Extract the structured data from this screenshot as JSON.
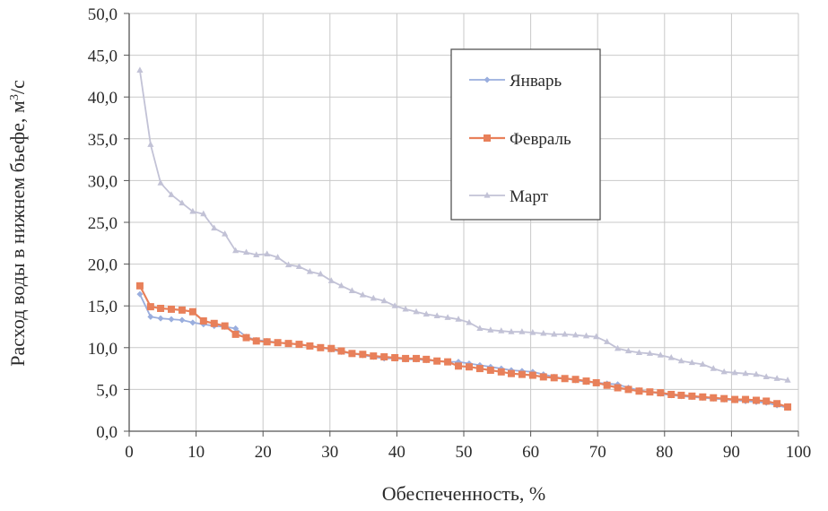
{
  "chart_data": {
    "type": "line",
    "xlabel": "Обеспеченность, %",
    "ylabel": "Расход воды в нижнем бьефе, м",
    "ylabel_sup": "3",
    "ylabel_suffix": "/с",
    "xlim": [
      0,
      100
    ],
    "ylim": [
      0,
      50
    ],
    "x_ticks": [
      0,
      10,
      20,
      30,
      40,
      50,
      60,
      70,
      80,
      90,
      100
    ],
    "x_tick_labels": [
      "0",
      "10",
      "20",
      "30",
      "40",
      "50",
      "60",
      "70",
      "80",
      "90",
      "100"
    ],
    "y_ticks": [
      0,
      5,
      10,
      15,
      20,
      25,
      30,
      35,
      40,
      45,
      50
    ],
    "y_tick_labels": [
      "0,0",
      "5,0",
      "10,0",
      "15,0",
      "20,0",
      "25,0",
      "30,0",
      "35,0",
      "40,0",
      "45,0",
      "50,0"
    ],
    "grid": true,
    "legend_position": "top-right-inside",
    "series": [
      {
        "name": "Январь",
        "color": "#9aaede",
        "marker": "diamond",
        "points": [
          [
            1.6,
            16.4
          ],
          [
            3.2,
            13.7
          ],
          [
            4.7,
            13.5
          ],
          [
            6.3,
            13.4
          ],
          [
            7.9,
            13.3
          ],
          [
            9.5,
            13.0
          ],
          [
            11.1,
            12.8
          ],
          [
            12.7,
            12.6
          ],
          [
            14.3,
            12.5
          ],
          [
            15.9,
            12.3
          ],
          [
            17.5,
            11.3
          ],
          [
            19.0,
            10.9
          ],
          [
            20.6,
            10.8
          ],
          [
            22.2,
            10.6
          ],
          [
            23.8,
            10.5
          ],
          [
            25.4,
            10.4
          ],
          [
            27.0,
            10.2
          ],
          [
            28.6,
            10.0
          ],
          [
            30.2,
            9.8
          ],
          [
            31.7,
            9.5
          ],
          [
            33.3,
            9.3
          ],
          [
            34.9,
            9.1
          ],
          [
            36.5,
            8.9
          ],
          [
            38.1,
            8.7
          ],
          [
            39.7,
            8.7
          ],
          [
            41.3,
            8.6
          ],
          [
            42.9,
            8.6
          ],
          [
            44.4,
            8.5
          ],
          [
            46.0,
            8.4
          ],
          [
            47.6,
            8.3
          ],
          [
            49.2,
            8.3
          ],
          [
            50.8,
            8.1
          ],
          [
            52.4,
            7.9
          ],
          [
            54.0,
            7.7
          ],
          [
            55.6,
            7.5
          ],
          [
            57.1,
            7.3
          ],
          [
            58.7,
            7.2
          ],
          [
            60.3,
            7.1
          ],
          [
            61.9,
            6.8
          ],
          [
            63.5,
            6.5
          ],
          [
            65.1,
            6.3
          ],
          [
            66.7,
            6.1
          ],
          [
            68.3,
            5.9
          ],
          [
            69.8,
            5.8
          ],
          [
            71.4,
            5.7
          ],
          [
            73.0,
            5.6
          ],
          [
            74.6,
            5.2
          ],
          [
            76.2,
            4.9
          ],
          [
            77.8,
            4.7
          ],
          [
            79.4,
            4.5
          ],
          [
            81.0,
            4.3
          ],
          [
            82.5,
            4.2
          ],
          [
            84.1,
            4.1
          ],
          [
            85.7,
            4.0
          ],
          [
            87.3,
            3.9
          ],
          [
            88.9,
            3.8
          ],
          [
            90.5,
            3.7
          ],
          [
            92.1,
            3.6
          ],
          [
            93.7,
            3.5
          ],
          [
            95.2,
            3.4
          ],
          [
            96.8,
            3.1
          ],
          [
            98.4,
            2.8
          ]
        ]
      },
      {
        "name": "Февраль",
        "color": "#e8805a",
        "marker": "square",
        "points": [
          [
            1.6,
            17.4
          ],
          [
            3.2,
            14.9
          ],
          [
            4.7,
            14.7
          ],
          [
            6.3,
            14.6
          ],
          [
            7.9,
            14.5
          ],
          [
            9.5,
            14.3
          ],
          [
            11.1,
            13.2
          ],
          [
            12.7,
            12.9
          ],
          [
            14.3,
            12.6
          ],
          [
            15.9,
            11.6
          ],
          [
            17.5,
            11.2
          ],
          [
            19.0,
            10.8
          ],
          [
            20.6,
            10.7
          ],
          [
            22.2,
            10.6
          ],
          [
            23.8,
            10.5
          ],
          [
            25.4,
            10.4
          ],
          [
            27.0,
            10.2
          ],
          [
            28.6,
            10.0
          ],
          [
            30.2,
            9.9
          ],
          [
            31.7,
            9.6
          ],
          [
            33.3,
            9.3
          ],
          [
            34.9,
            9.2
          ],
          [
            36.5,
            9.0
          ],
          [
            38.1,
            8.9
          ],
          [
            39.7,
            8.8
          ],
          [
            41.3,
            8.7
          ],
          [
            42.9,
            8.7
          ],
          [
            44.4,
            8.6
          ],
          [
            46.0,
            8.4
          ],
          [
            47.6,
            8.3
          ],
          [
            49.2,
            7.8
          ],
          [
            50.8,
            7.7
          ],
          [
            52.4,
            7.5
          ],
          [
            54.0,
            7.3
          ],
          [
            55.6,
            7.1
          ],
          [
            57.1,
            6.9
          ],
          [
            58.7,
            6.8
          ],
          [
            60.3,
            6.7
          ],
          [
            61.9,
            6.5
          ],
          [
            63.5,
            6.4
          ],
          [
            65.1,
            6.3
          ],
          [
            66.7,
            6.2
          ],
          [
            68.3,
            6.0
          ],
          [
            69.8,
            5.8
          ],
          [
            71.4,
            5.5
          ],
          [
            73.0,
            5.2
          ],
          [
            74.6,
            5.0
          ],
          [
            76.2,
            4.8
          ],
          [
            77.8,
            4.7
          ],
          [
            79.4,
            4.6
          ],
          [
            81.0,
            4.4
          ],
          [
            82.5,
            4.3
          ],
          [
            84.1,
            4.2
          ],
          [
            85.7,
            4.1
          ],
          [
            87.3,
            4.0
          ],
          [
            88.9,
            3.9
          ],
          [
            90.5,
            3.8
          ],
          [
            92.1,
            3.8
          ],
          [
            93.7,
            3.7
          ],
          [
            95.2,
            3.6
          ],
          [
            96.8,
            3.3
          ],
          [
            98.4,
            2.9
          ]
        ]
      },
      {
        "name": "Март",
        "color": "#c2c2d6",
        "marker": "triangle",
        "points": [
          [
            1.6,
            43.2
          ],
          [
            3.2,
            34.3
          ],
          [
            4.7,
            29.7
          ],
          [
            6.3,
            28.3
          ],
          [
            7.9,
            27.3
          ],
          [
            9.5,
            26.3
          ],
          [
            11.1,
            26.0
          ],
          [
            12.7,
            24.3
          ],
          [
            14.3,
            23.6
          ],
          [
            15.9,
            21.6
          ],
          [
            17.5,
            21.4
          ],
          [
            19.0,
            21.1
          ],
          [
            20.6,
            21.2
          ],
          [
            22.2,
            20.8
          ],
          [
            23.8,
            19.9
          ],
          [
            25.4,
            19.7
          ],
          [
            27.0,
            19.1
          ],
          [
            28.6,
            18.8
          ],
          [
            30.2,
            18.0
          ],
          [
            31.7,
            17.4
          ],
          [
            33.3,
            16.8
          ],
          [
            34.9,
            16.3
          ],
          [
            36.5,
            15.9
          ],
          [
            38.1,
            15.6
          ],
          [
            39.7,
            15.0
          ],
          [
            41.3,
            14.6
          ],
          [
            42.9,
            14.3
          ],
          [
            44.4,
            14.0
          ],
          [
            46.0,
            13.8
          ],
          [
            47.6,
            13.6
          ],
          [
            49.2,
            13.4
          ],
          [
            50.8,
            13.0
          ],
          [
            52.4,
            12.3
          ],
          [
            54.0,
            12.1
          ],
          [
            55.6,
            12.0
          ],
          [
            57.1,
            11.9
          ],
          [
            58.7,
            11.9
          ],
          [
            60.3,
            11.8
          ],
          [
            61.9,
            11.7
          ],
          [
            63.5,
            11.6
          ],
          [
            65.1,
            11.6
          ],
          [
            66.7,
            11.5
          ],
          [
            68.3,
            11.4
          ],
          [
            69.8,
            11.3
          ],
          [
            71.4,
            10.7
          ],
          [
            73.0,
            9.9
          ],
          [
            74.6,
            9.6
          ],
          [
            76.2,
            9.4
          ],
          [
            77.8,
            9.3
          ],
          [
            79.4,
            9.1
          ],
          [
            81.0,
            8.8
          ],
          [
            82.5,
            8.4
          ],
          [
            84.1,
            8.2
          ],
          [
            85.7,
            8.0
          ],
          [
            87.3,
            7.5
          ],
          [
            88.9,
            7.1
          ],
          [
            90.5,
            7.0
          ],
          [
            92.1,
            6.9
          ],
          [
            93.7,
            6.8
          ],
          [
            95.2,
            6.5
          ],
          [
            96.8,
            6.3
          ],
          [
            98.4,
            6.1
          ]
        ]
      }
    ]
  }
}
